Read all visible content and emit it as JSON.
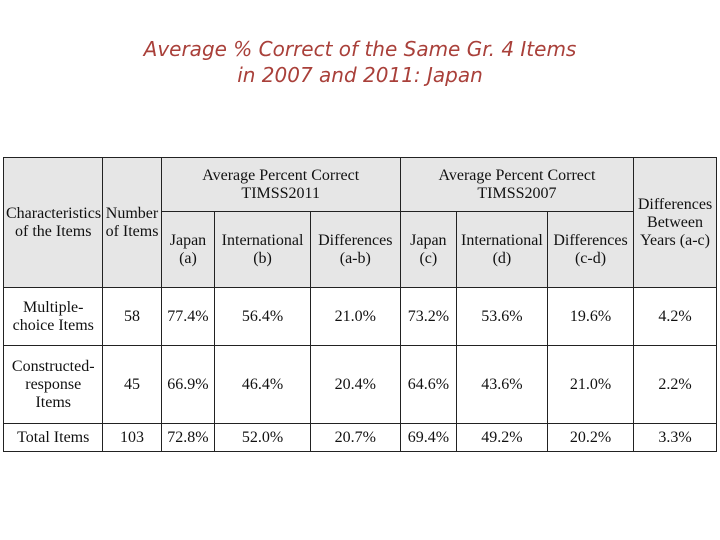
{
  "title": {
    "line1": "Average % Correct of the Same Gr. 4 Items",
    "line2": "in 2007 and 2011: Japan"
  },
  "table": {
    "header": {
      "characteristics": "Characteristics of the Items",
      "number_of_items": "Number of Items",
      "group_2011_line1": "Average Percent Correct",
      "group_2011_line2": "TIMSS2011",
      "group_2007_line1": "Average Percent Correct",
      "group_2007_line2": "TIMSS2007",
      "diff_years": "Differences Between Years (a-c)",
      "japan_a_line1": "Japan",
      "japan_a_line2": "(a)",
      "intl_b_line1": "International",
      "intl_b_line2": "(b)",
      "diff_ab_line1": "Differences",
      "diff_ab_line2": "(a-b)",
      "japan_c_line1": "Japan",
      "japan_c_line2": "(c)",
      "intl_d_line1": "International",
      "intl_d_line2": "(d)",
      "diff_cd_line1": "Differences",
      "diff_cd_line2": "(c-d)"
    },
    "rows": [
      {
        "label": "Multiple-choice Items",
        "n": "58",
        "a": "77.4%",
        "b": "56.4%",
        "ab": "21.0%",
        "c": "73.2%",
        "d": "53.6%",
        "cd": "19.6%",
        "ac": "4.2%"
      },
      {
        "label": "Constructed-response Items",
        "n": "45",
        "a": "66.9%",
        "b": "46.4%",
        "ab": "20.4%",
        "c": "64.6%",
        "d": "43.6%",
        "cd": "21.0%",
        "ac": "2.2%"
      },
      {
        "label": "Total Items",
        "n": "103",
        "a": "72.8%",
        "b": "52.0%",
        "ab": "20.7%",
        "c": "69.4%",
        "d": "49.2%",
        "cd": "20.2%",
        "ac": "3.3%"
      }
    ]
  }
}
